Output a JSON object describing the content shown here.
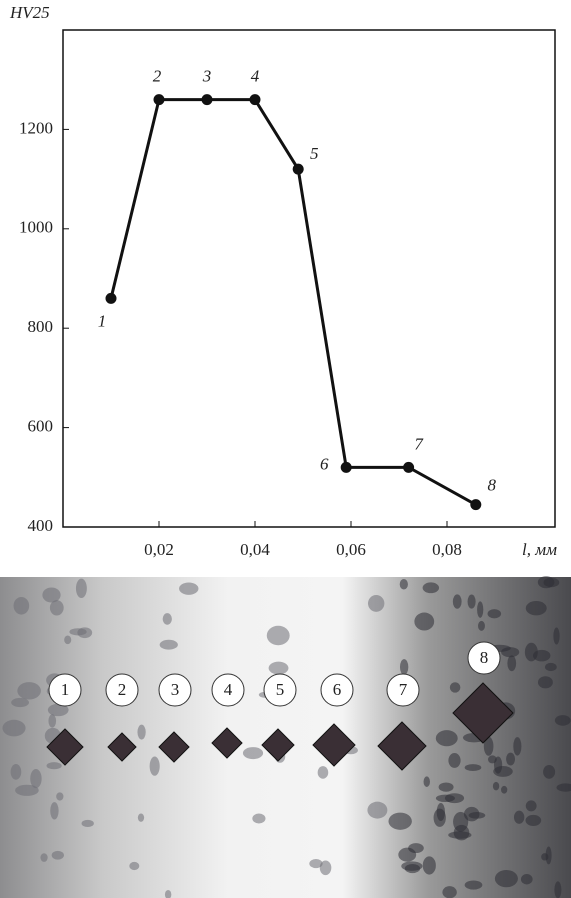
{
  "chart_data": {
    "type": "line",
    "y_label": "HV25",
    "x_label": "l, мм",
    "x": [
      0.01,
      0.02,
      0.03,
      0.04,
      0.049,
      0.059,
      0.072,
      0.086
    ],
    "series": [
      {
        "color": "#111111",
        "values": [
          860,
          1260,
          1260,
          1260,
          1120,
          520,
          520,
          445
        ]
      }
    ],
    "point_labels": [
      "1",
      "2",
      "3",
      "4",
      "5",
      "6",
      "7",
      "8"
    ],
    "xlim": [
      0,
      0.1025
    ],
    "ylim": [
      400,
      1400
    ],
    "xticks": [
      {
        "value": 0.02,
        "label": "0,02"
      },
      {
        "value": 0.04,
        "label": "0,04"
      },
      {
        "value": 0.06,
        "label": "0,06"
      },
      {
        "value": 0.08,
        "label": "0,08"
      }
    ],
    "yticks": [
      400,
      600,
      800,
      1000,
      1200
    ]
  },
  "image": {
    "markers": [
      "1",
      "2",
      "3",
      "4",
      "5",
      "6",
      "7",
      "8"
    ]
  }
}
